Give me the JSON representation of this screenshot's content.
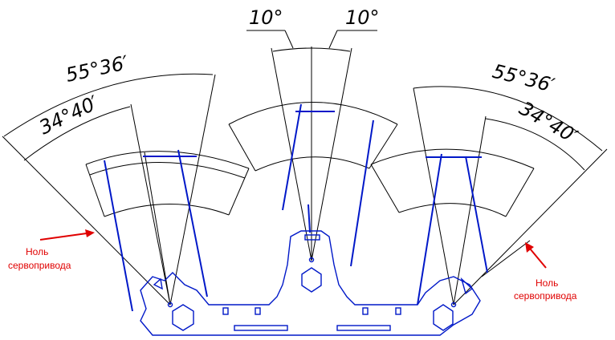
{
  "dimensions": {
    "left_outer": "55°36′",
    "left_inner": "34°40′",
    "center_left": "10°",
    "center_right": "10°",
    "right_outer": "55°36′",
    "right_inner": "34°40′"
  },
  "notes": {
    "left_line1": "Ноль",
    "left_line2": "сервопривода",
    "right_line1": "Ноль",
    "right_line2": "сервопривода"
  },
  "colors": {
    "lines": "#000000",
    "parts": "#0018c8",
    "notes": "#e00000"
  }
}
